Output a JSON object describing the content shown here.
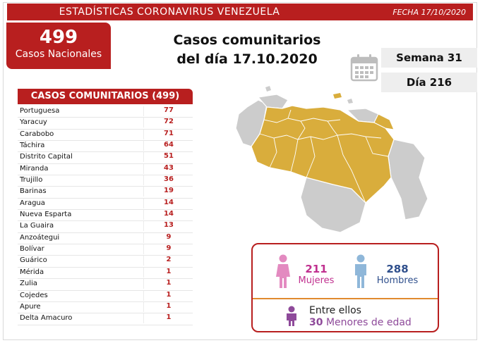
{
  "header": {
    "title": "ESTADÍSTICAS CORONAVIRUS VENEZUELA",
    "date": "FECHA 17/10/2020"
  },
  "national": {
    "count": "499",
    "label": "Casos Nacionales"
  },
  "headline": {
    "line1": "Casos comunitarios",
    "line2": "del día 17.10.2020"
  },
  "week": "Semana 31",
  "day": "Día 216",
  "table": {
    "title": "CASOS COMUNITARIOS (499)",
    "rows": [
      {
        "name": "Portuguesa",
        "count": "77"
      },
      {
        "name": "Yaracuy",
        "count": "72"
      },
      {
        "name": "Carabobo",
        "count": "71"
      },
      {
        "name": "Táchira",
        "count": "64"
      },
      {
        "name": "Distrito Capital",
        "count": "51"
      },
      {
        "name": "Miranda",
        "count": "43"
      },
      {
        "name": "Trujillo",
        "count": "36"
      },
      {
        "name": "Barinas",
        "count": "19"
      },
      {
        "name": "Aragua",
        "count": "14"
      },
      {
        "name": "Nueva Esparta",
        "count": "14"
      },
      {
        "name": "La Guaira",
        "count": "13"
      },
      {
        "name": "Anzoátegui",
        "count": "9"
      },
      {
        "name": "Bolívar",
        "count": "9"
      },
      {
        "name": "Guárico",
        "count": "2"
      },
      {
        "name": "Mérida",
        "count": "1"
      },
      {
        "name": "Zulia",
        "count": "1"
      },
      {
        "name": "Cojedes",
        "count": "1"
      },
      {
        "name": "Apure",
        "count": "1"
      },
      {
        "name": "Delta Amacuro",
        "count": "1"
      }
    ]
  },
  "gender": {
    "women": {
      "count": "211",
      "label": "Mujeres"
    },
    "men": {
      "count": "288",
      "label": "Hombres"
    },
    "minors": {
      "prefix": "Entre ellos",
      "count": "30",
      "label": "Menores de edad"
    }
  },
  "colors": {
    "brand_red": "#b81f1f",
    "map_affected": "#d9ad3c",
    "map_other": "#cccccc",
    "women": "#e38ac0",
    "men": "#8fb7d9",
    "minors": "#8e4a9a"
  },
  "icons": [
    "calendar-icon",
    "venezuela-map",
    "woman-icon",
    "man-icon",
    "child-icon"
  ]
}
